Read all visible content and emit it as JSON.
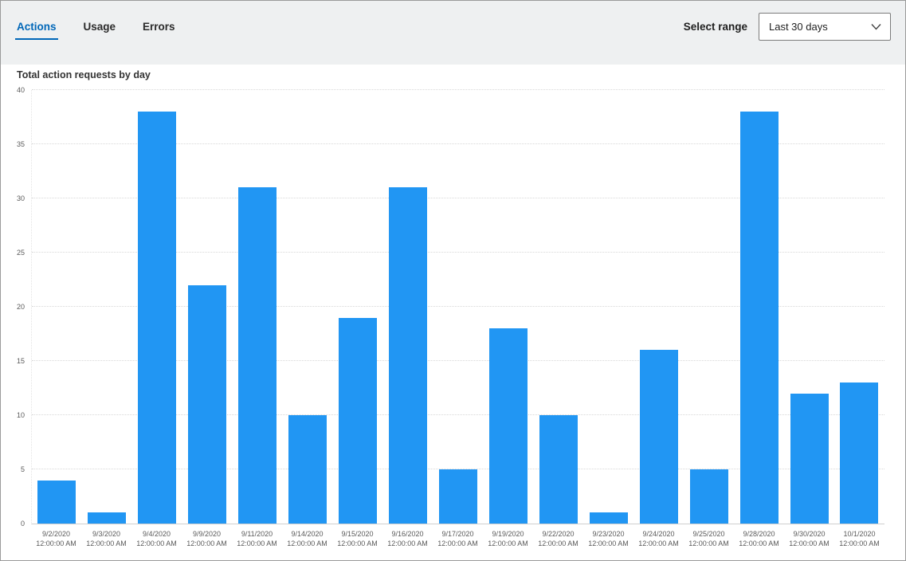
{
  "tabs": [
    {
      "label": "Actions",
      "active": true
    },
    {
      "label": "Usage",
      "active": false
    },
    {
      "label": "Errors",
      "active": false
    }
  ],
  "range_selector": {
    "label": "Select range",
    "selected": "Last 30 days"
  },
  "colors": {
    "accent": "#0067b8",
    "page_background": "#eef0f1",
    "card_background": "#ffffff"
  },
  "chart_data": {
    "type": "bar",
    "title": "Total action requests by day",
    "categories": [
      {
        "date": "9/2/2020",
        "time": "12:00:00 AM"
      },
      {
        "date": "9/3/2020",
        "time": "12:00:00 AM"
      },
      {
        "date": "9/4/2020",
        "time": "12:00:00 AM"
      },
      {
        "date": "9/9/2020",
        "time": "12:00:00 AM"
      },
      {
        "date": "9/11/2020",
        "time": "12:00:00 AM"
      },
      {
        "date": "9/14/2020",
        "time": "12:00:00 AM"
      },
      {
        "date": "9/15/2020",
        "time": "12:00:00 AM"
      },
      {
        "date": "9/16/2020",
        "time": "12:00:00 AM"
      },
      {
        "date": "9/17/2020",
        "time": "12:00:00 AM"
      },
      {
        "date": "9/19/2020",
        "time": "12:00:00 AM"
      },
      {
        "date": "9/22/2020",
        "time": "12:00:00 AM"
      },
      {
        "date": "9/23/2020",
        "time": "12:00:00 AM"
      },
      {
        "date": "9/24/2020",
        "time": "12:00:00 AM"
      },
      {
        "date": "9/25/2020",
        "time": "12:00:00 AM"
      },
      {
        "date": "9/28/2020",
        "time": "12:00:00 AM"
      },
      {
        "date": "9/30/2020",
        "time": "12:00:00 AM"
      },
      {
        "date": "10/1/2020",
        "time": "12:00:00 AM"
      }
    ],
    "values": [
      4,
      1,
      38,
      22,
      31,
      10,
      19,
      31,
      5,
      18,
      10,
      1,
      16,
      5,
      38,
      12,
      13
    ],
    "xlabel": "",
    "ylabel": "",
    "ylim": [
      0,
      40
    ],
    "ytick_step": 5,
    "grid": "horizontal-dotted",
    "legend": "none",
    "bar_color": "#2196f3"
  }
}
